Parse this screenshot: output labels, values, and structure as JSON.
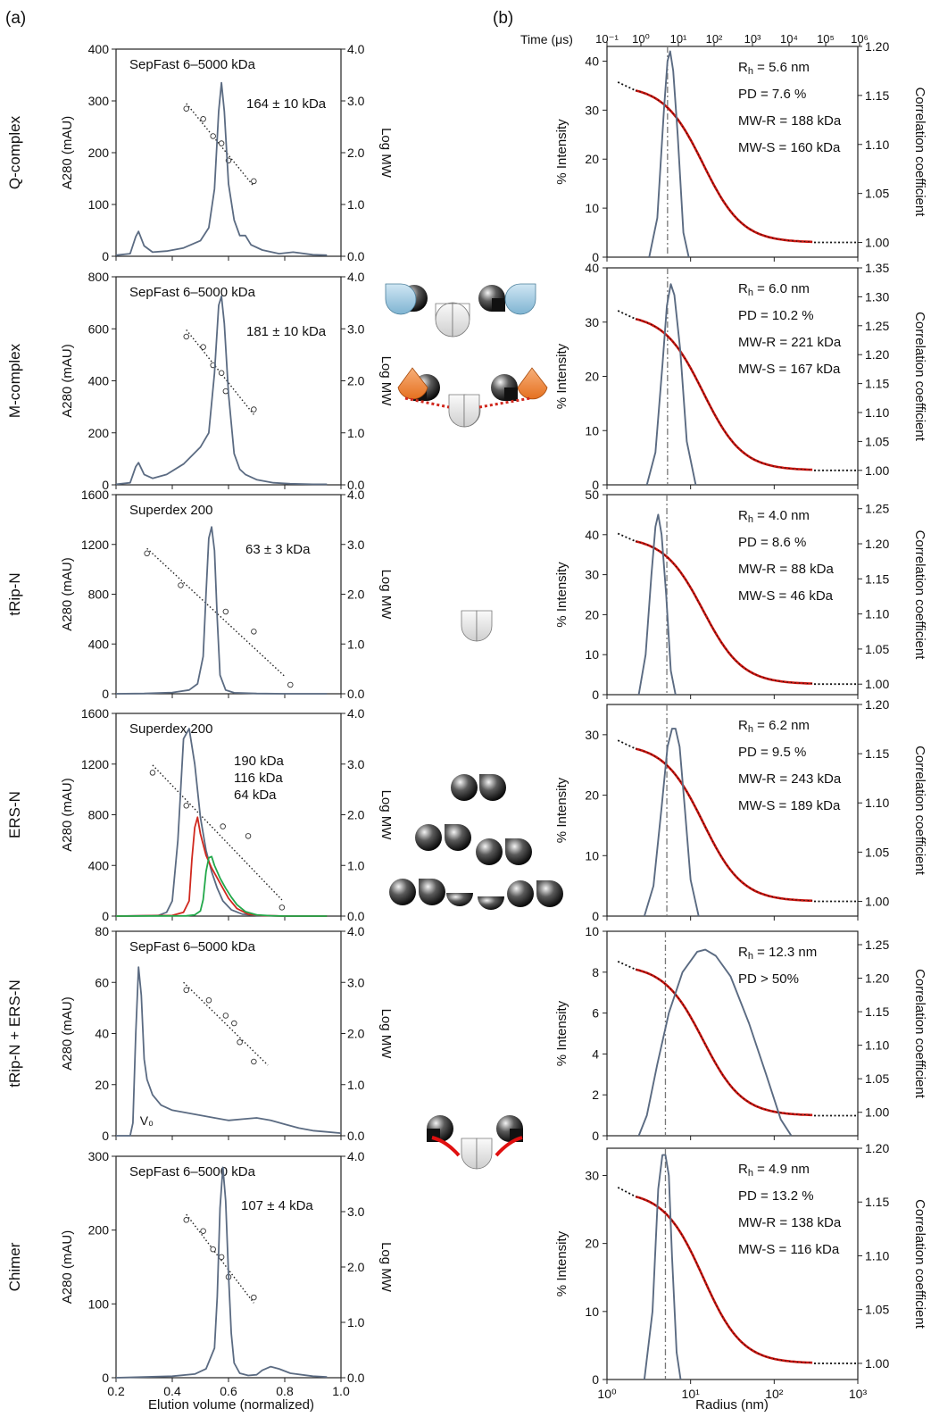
{
  "figure": {
    "panel_a_label": "(a)",
    "panel_b_label": "(b)",
    "sec_xlabel": "Elution volume (normalized)",
    "dls_xlabel": "Radius (nm)",
    "dls_time_label": "Time (μs)",
    "colors": {
      "trace": "#5b6b82",
      "fit": "#c8140e",
      "red_trace": "#d0281e",
      "green_trace": "#22a84a",
      "dotted": "#222222"
    }
  },
  "chart_data": [
    {
      "type": "line",
      "panel": "a",
      "row": "Q-complex",
      "row_label": "Q-complex",
      "column_label": "SepFast 6–5000 kDa",
      "annotation": "164 ± 10 kDa",
      "ylabel": "A280 (mAU)",
      "ylabel_right": "Log MW",
      "xlabel": "Elution volume (normalized)",
      "xlim": [
        0.2,
        1.0
      ],
      "ylim": [
        0,
        400
      ],
      "yticks": [
        "0",
        "100",
        "200",
        "300",
        "400"
      ],
      "yticks_right": [
        "0.0",
        "1.0",
        "2.0",
        "3.0",
        "4.0"
      ],
      "series": [
        {
          "color": "#5b6b82",
          "x": [
            0.2,
            0.25,
            0.27,
            0.28,
            0.3,
            0.33,
            0.38,
            0.44,
            0.5,
            0.53,
            0.55,
            0.565,
            0.575,
            0.585,
            0.6,
            0.62,
            0.64,
            0.66,
            0.68,
            0.72,
            0.78,
            0.83,
            0.9,
            0.95
          ],
          "y": [
            2,
            5,
            38,
            48,
            20,
            8,
            10,
            16,
            30,
            55,
            130,
            280,
            335,
            280,
            140,
            70,
            40,
            40,
            22,
            12,
            5,
            8,
            3,
            2
          ]
        }
      ],
      "calibration_points": {
        "x": [
          0.45,
          0.51,
          0.545,
          0.575,
          0.6,
          0.69
        ],
        "y": [
          2.85,
          2.65,
          2.32,
          2.18,
          1.85,
          1.45
        ]
      },
      "calibration_fit": {
        "x": [
          0.45,
          0.69
        ],
        "y": [
          2.95,
          1.35
        ]
      }
    },
    {
      "type": "line",
      "panel": "a",
      "row": "M-complex",
      "row_label": "M-complex",
      "column_label": "SepFast 6–5000 kDa",
      "annotation": "181 ± 10 kDa",
      "ylabel": "A280 (mAU)",
      "ylabel_right": "Log MW",
      "xlim": [
        0.2,
        1.0
      ],
      "ylim": [
        0,
        800
      ],
      "yticks": [
        "0",
        "200",
        "400",
        "600",
        "800"
      ],
      "yticks_right": [
        "0.0",
        "1.0",
        "2.0",
        "3.0",
        "4.0"
      ],
      "series": [
        {
          "color": "#5b6b82",
          "x": [
            0.2,
            0.25,
            0.27,
            0.28,
            0.3,
            0.33,
            0.38,
            0.44,
            0.5,
            0.53,
            0.55,
            0.565,
            0.575,
            0.585,
            0.6,
            0.62,
            0.64,
            0.66,
            0.7,
            0.76,
            0.82,
            0.9,
            0.95
          ],
          "y": [
            2,
            8,
            70,
            85,
            40,
            25,
            40,
            80,
            145,
            200,
            430,
            690,
            725,
            620,
            350,
            120,
            60,
            40,
            20,
            8,
            4,
            2,
            2
          ]
        }
      ],
      "calibration_points": {
        "x": [
          0.45,
          0.51,
          0.545,
          0.575,
          0.59,
          0.69
        ],
        "y": [
          2.85,
          2.65,
          2.3,
          2.15,
          1.8,
          1.45
        ]
      },
      "calibration_fit": {
        "x": [
          0.45,
          0.69
        ],
        "y": [
          2.98,
          1.35
        ]
      }
    },
    {
      "type": "line",
      "panel": "a",
      "row": "tRip-N",
      "row_label": "tRip-N",
      "column_label": "Superdex 200",
      "annotation": "63 ± 3 kDa",
      "ylabel": "A280 (mAU)",
      "ylabel_right": "Log MW",
      "xlim": [
        0.2,
        1.0
      ],
      "ylim": [
        0,
        1600
      ],
      "yticks": [
        "0",
        "400",
        "800",
        "1200",
        "1600"
      ],
      "yticks_right": [
        "0.0",
        "1.0",
        "2.0",
        "3.0",
        "4.0"
      ],
      "series": [
        {
          "color": "#5b6b82",
          "x": [
            0.2,
            0.3,
            0.4,
            0.46,
            0.49,
            0.51,
            0.52,
            0.53,
            0.54,
            0.55,
            0.56,
            0.57,
            0.59,
            0.62,
            0.7,
            0.8,
            0.95
          ],
          "y": [
            0,
            2,
            10,
            30,
            80,
            300,
            800,
            1250,
            1340,
            1150,
            600,
            150,
            30,
            8,
            2,
            0,
            0
          ]
        }
      ],
      "calibration_points": {
        "x": [
          0.31,
          0.43,
          0.59,
          0.69,
          0.82
        ],
        "y": [
          2.82,
          2.18,
          1.65,
          1.25,
          0.18
        ]
      },
      "calibration_fit": {
        "x": [
          0.31,
          0.8
        ],
        "y": [
          2.92,
          0.35
        ]
      }
    },
    {
      "type": "line",
      "panel": "a",
      "row": "ERS-N",
      "row_label": "ERS-N",
      "column_label": "Superdex 200",
      "ylabel": "A280 (mAU)",
      "ylabel_right": "Log MW",
      "xlim": [
        0.2,
        1.0
      ],
      "ylim": [
        0,
        1600
      ],
      "yticks": [
        "0",
        "400",
        "800",
        "1200",
        "1600"
      ],
      "yticks_right": [
        "0.0",
        "1.0",
        "2.0",
        "3.0",
        "4.0"
      ],
      "series": [
        {
          "name": "190 kDa",
          "color": "#5b6b82",
          "x": [
            0.2,
            0.35,
            0.38,
            0.4,
            0.42,
            0.44,
            0.46,
            0.48,
            0.5,
            0.52,
            0.54,
            0.56,
            0.58,
            0.61,
            0.65,
            0.7,
            0.8,
            0.95
          ],
          "y": [
            0,
            5,
            30,
            120,
            600,
            1400,
            1480,
            1200,
            780,
            520,
            350,
            220,
            120,
            50,
            15,
            5,
            0,
            0
          ]
        },
        {
          "name": "116 kDa",
          "color": "#d0281e",
          "x": [
            0.2,
            0.4,
            0.44,
            0.46,
            0.47,
            0.48,
            0.49,
            0.5,
            0.52,
            0.54,
            0.56,
            0.58,
            0.6,
            0.63,
            0.67,
            0.72,
            0.8,
            0.95
          ],
          "y": [
            0,
            5,
            30,
            120,
            450,
            700,
            780,
            650,
            480,
            380,
            300,
            220,
            140,
            60,
            15,
            4,
            0,
            0
          ]
        },
        {
          "name": "64 kDa",
          "color": "#22a84a",
          "x": [
            0.2,
            0.45,
            0.48,
            0.5,
            0.51,
            0.52,
            0.53,
            0.54,
            0.55,
            0.57,
            0.59,
            0.61,
            0.63,
            0.66,
            0.7,
            0.75,
            0.8,
            0.95
          ],
          "y": [
            0,
            2,
            10,
            40,
            130,
            350,
            460,
            470,
            400,
            300,
            220,
            150,
            90,
            35,
            10,
            3,
            0,
            0
          ]
        }
      ],
      "calibration_points": {
        "x": [
          0.33,
          0.45,
          0.58,
          0.67,
          0.79
        ],
        "y": [
          2.83,
          2.18,
          1.77,
          1.58,
          0.17
        ]
      },
      "calibration_fit": {
        "x": [
          0.33,
          0.79
        ],
        "y": [
          2.98,
          0.32
        ]
      }
    },
    {
      "type": "line",
      "panel": "a",
      "row": "tRip-N + ERS-N",
      "row_label": "tRip-N + ERS-N",
      "column_label": "SepFast 6–5000 kDa",
      "v0_label": "V₀",
      "ylabel": "A280 (mAU)",
      "ylabel_right": "Log MW",
      "xlim": [
        0.2,
        1.0
      ],
      "ylim": [
        0,
        80
      ],
      "yticks": [
        "0",
        "20",
        "40",
        "60",
        "80"
      ],
      "yticks_right": [
        "0.0",
        "1.0",
        "2.0",
        "3.0",
        "4.0"
      ],
      "series": [
        {
          "color": "#5b6b82",
          "x": [
            0.2,
            0.25,
            0.26,
            0.27,
            0.28,
            0.29,
            0.3,
            0.31,
            0.33,
            0.36,
            0.4,
            0.45,
            0.5,
            0.55,
            0.6,
            0.65,
            0.7,
            0.75,
            0.8,
            0.85,
            0.9,
            0.95,
            1.0
          ],
          "y": [
            0,
            0,
            5,
            40,
            66,
            55,
            30,
            22,
            16,
            12,
            10,
            9,
            8,
            7,
            6,
            6.5,
            7,
            6,
            4.5,
            3,
            2,
            1.5,
            1
          ]
        }
      ],
      "calibration_points": {
        "x": [
          0.45,
          0.53,
          0.59,
          0.62,
          0.64,
          0.69
        ],
        "y": [
          2.85,
          2.65,
          2.35,
          2.2,
          1.83,
          1.45
        ]
      },
      "calibration_fit": {
        "x": [
          0.44,
          0.74
        ],
        "y": [
          3.0,
          1.38
        ]
      }
    },
    {
      "type": "line",
      "panel": "a",
      "row": "Chimer",
      "row_label": "Chimer",
      "column_label": "SepFast 6–5000 kDa",
      "annotation": "107 ± 4 kDa",
      "ylabel": "A280 (mAU)",
      "ylabel_right": "Log MW",
      "xlabel": "Elution volume (normalized)",
      "xlim": [
        0.2,
        1.0
      ],
      "ylim": [
        0,
        300
      ],
      "xticks": [
        "0.2",
        "0.4",
        "0.6",
        "0.8",
        "1.0"
      ],
      "yticks": [
        "0",
        "100",
        "200",
        "300"
      ],
      "yticks_right": [
        "0.0",
        "1.0",
        "2.0",
        "3.0",
        "4.0"
      ],
      "series": [
        {
          "color": "#5b6b82",
          "x": [
            0.2,
            0.3,
            0.4,
            0.48,
            0.52,
            0.55,
            0.56,
            0.57,
            0.58,
            0.59,
            0.6,
            0.61,
            0.62,
            0.64,
            0.67,
            0.7,
            0.72,
            0.75,
            0.78,
            0.82,
            0.9,
            0.95
          ],
          "y": [
            0,
            1,
            2,
            5,
            12,
            40,
            110,
            230,
            285,
            240,
            140,
            60,
            20,
            6,
            3,
            4,
            10,
            15,
            12,
            6,
            2,
            1
          ]
        }
      ],
      "calibration_points": {
        "x": [
          0.45,
          0.51,
          0.545,
          0.575,
          0.6,
          0.69
        ],
        "y": [
          2.85,
          2.65,
          2.32,
          2.18,
          1.82,
          1.45
        ]
      },
      "calibration_fit": {
        "x": [
          0.45,
          0.69
        ],
        "y": [
          2.95,
          1.35
        ]
      }
    },
    {
      "type": "line",
      "panel": "b",
      "row": "Q-complex",
      "xlabel": "Radius (nm)",
      "xscale": "log",
      "xlim": [
        1,
        1000
      ],
      "top_xlabel": "Time (μs)",
      "top_xscale": "log",
      "top_xticks": [
        "10⁻¹",
        "10⁰",
        "10¹",
        "10²",
        "10³",
        "10⁴",
        "10⁵",
        "10⁶"
      ],
      "ylabel": "% Intensity",
      "ylim": [
        0,
        43
      ],
      "yticks": [
        "0",
        "10",
        "20",
        "30",
        "40"
      ],
      "ylabel_right": "Correlation coefficient",
      "ylim_right": [
        0.985,
        1.2
      ],
      "yticks_right": [
        "1.00",
        "1.05",
        "1.10",
        "1.15",
        "1.20"
      ],
      "annotations": [
        "R_h = 5.6 nm",
        "PD = 7.6 %",
        "MW-R = 188 kDa",
        "MW-S = 160 kDa"
      ],
      "size_distribution": {
        "x": [
          3.2,
          4.0,
          4.8,
          5.3,
          5.7,
          6.2,
          7.0,
          8.2,
          9.5
        ],
        "y": [
          0,
          8,
          30,
          40,
          42,
          38,
          25,
          5,
          0
        ]
      },
      "reference_line_x": 5.3,
      "correlation_start": 1.16,
      "correlation_end": 1.0
    },
    {
      "type": "line",
      "panel": "b",
      "row": "M-complex",
      "ylabel": "% Intensity",
      "ylim": [
        0,
        40
      ],
      "yticks": [
        "0",
        "10",
        "20",
        "30",
        "40"
      ],
      "ylabel_right": "Correlation coefficient",
      "ylim_right": [
        0.975,
        1.35
      ],
      "yticks_right": [
        "1.00",
        "1.05",
        "1.10",
        "1.15",
        "1.20",
        "1.25",
        "1.30",
        "1.35"
      ],
      "annotations": [
        "R_h = 6.0 nm",
        "PD = 10.2 %",
        "MW-R = 221 kDa",
        "MW-S = 167 kDa"
      ],
      "size_distribution": {
        "x": [
          3.0,
          3.8,
          4.6,
          5.2,
          5.8,
          6.4,
          7.5,
          9.0,
          11.5
        ],
        "y": [
          0,
          6,
          22,
          33,
          37,
          35,
          25,
          8,
          0
        ]
      },
      "reference_line_x": 5.3,
      "correlation_start": 1.27,
      "correlation_end": 1.0
    },
    {
      "type": "line",
      "panel": "b",
      "row": "tRip-N",
      "ylabel": "% Intensity",
      "ylim": [
        0,
        50
      ],
      "yticks": [
        "0",
        "10",
        "20",
        "30",
        "40",
        "50"
      ],
      "ylabel_right": "Correlation coefficient",
      "ylim_right": [
        0.985,
        1.27
      ],
      "yticks_right": [
        "1.00",
        "1.05",
        "1.10",
        "1.15",
        "1.20",
        "1.25"
      ],
      "annotations": [
        "R_h = 4.0 nm",
        "PD = 8.6 %",
        "MW-R = 88 kDa",
        "MW-S = 46 kDa"
      ],
      "size_distribution": {
        "x": [
          2.4,
          2.9,
          3.4,
          3.8,
          4.1,
          4.5,
          5.1,
          5.8,
          6.6
        ],
        "y": [
          0,
          10,
          30,
          42,
          45,
          40,
          25,
          6,
          0
        ]
      },
      "reference_line_x": 5.2,
      "correlation_start": 1.21,
      "correlation_end": 1.0
    },
    {
      "type": "line",
      "panel": "b",
      "row": "ERS-N",
      "ylabel": "% Intensity",
      "ylim": [
        0,
        35
      ],
      "yticks": [
        "0",
        "10",
        "20",
        "30"
      ],
      "ylabel_right": "Correlation coefficient",
      "ylim_right": [
        0.985,
        1.2
      ],
      "yticks_right": [
        "1.00",
        "1.05",
        "1.10",
        "1.15",
        "1.20"
      ],
      "annotations": [
        "R_h = 6.2 nm",
        "PD = 9.5 %",
        "MW-R = 243 kDa",
        "MW-S = 189 kDa"
      ],
      "size_distribution": {
        "x": [
          2.8,
          3.6,
          4.5,
          5.3,
          6.0,
          6.6,
          7.4,
          8.5,
          10.0,
          12.5
        ],
        "y": [
          0,
          5,
          18,
          28,
          31,
          31,
          28,
          18,
          6,
          0
        ]
      },
      "reference_line_x": 5.2,
      "correlation_start": 1.16,
      "correlation_end": 1.0
    },
    {
      "type": "line",
      "panel": "b",
      "row": "tRip-N + ERS-N",
      "ylabel": "% Intensity",
      "ylim": [
        0,
        10
      ],
      "yticks": [
        "0",
        "2",
        "4",
        "6",
        "8",
        "10"
      ],
      "ylabel_right": "Correlation coefficient",
      "ylim_right": [
        0.965,
        1.27
      ],
      "yticks_right": [
        "1.00",
        "1.05",
        "1.10",
        "1.15",
        "1.20",
        "1.25"
      ],
      "annotations": [
        "R_h = 12.3 nm",
        "PD > 50%"
      ],
      "size_distribution": {
        "x": [
          2.4,
          3.0,
          4.0,
          5.5,
          8.0,
          12,
          15,
          20,
          30,
          50,
          80,
          120,
          160
        ],
        "y": [
          0,
          1,
          3.5,
          6,
          8,
          9,
          9.1,
          8.8,
          7.8,
          5.5,
          3,
          0.8,
          0
        ]
      },
      "reference_line_x": 5.0,
      "correlation_start": 1.22,
      "correlation_end": 0.995
    },
    {
      "type": "line",
      "panel": "b",
      "row": "Chimer",
      "xlabel": "Radius (nm)",
      "xscale": "log",
      "xticks": [
        "10⁰",
        "10¹",
        "10²",
        "10³"
      ],
      "ylabel": "% Intensity",
      "ylim": [
        0,
        34
      ],
      "yticks": [
        "0",
        "10",
        "20",
        "30"
      ],
      "ylabel_right": "Correlation coefficient",
      "ylim_right": [
        0.985,
        1.2
      ],
      "yticks_right": [
        "1.00",
        "1.05",
        "1.10",
        "1.15",
        "1.20"
      ],
      "annotations": [
        "R_h = 4.9 nm",
        "PD = 13.2 %",
        "MW-R = 138 kDa",
        "MW-S = 116 kDa"
      ],
      "size_distribution": {
        "x": [
          2.8,
          3.5,
          4.1,
          4.6,
          5.0,
          5.5,
          6.0,
          6.8,
          7.6
        ],
        "y": [
          0,
          10,
          28,
          33,
          33,
          30,
          18,
          4,
          0
        ]
      },
      "reference_line_x": 5.0,
      "correlation_start": 1.16,
      "correlation_end": 1.0
    }
  ]
}
